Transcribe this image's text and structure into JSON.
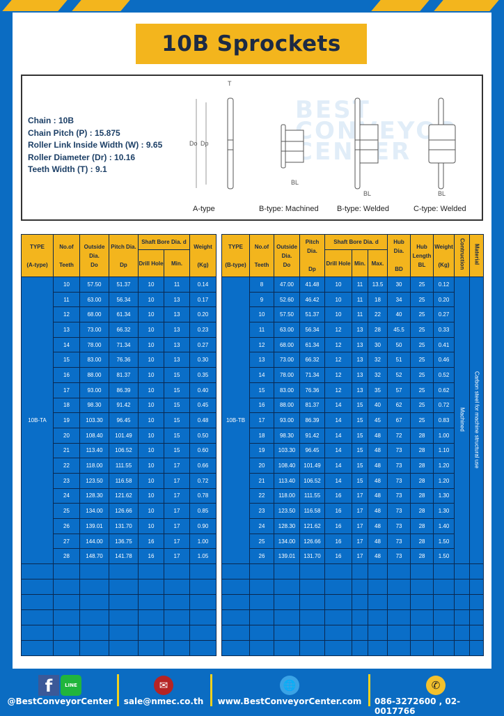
{
  "title": "10B Sprockets",
  "specs": {
    "chain": "Chain  :  10B",
    "pitch": "Chain Pitch (P)  :  15.875",
    "roller_width": "Roller Link Inside Width (W) : 9.65",
    "roller_diameter": "Roller Diameter (Dr)  : 10.16",
    "teeth_width": "Teeth Width (T)  :  9.1"
  },
  "diagram_labels": [
    "A-type",
    "B-type: Machined",
    "B-type: Welded",
    "C-type: Welded"
  ],
  "watermark": "BEST CONVEYOR CENTER",
  "table_a": {
    "headers": {
      "type": "TYPE",
      "type_sub": "(A-type)",
      "teeth": "No.of",
      "teeth_sub": "Teeth",
      "do": "Outside",
      "do_sub": "Dia.",
      "do_sub2": "Do",
      "dp": "Pitch Dia.",
      "dp_sub": "Dp",
      "bore": "Shaft Bore Dia. d",
      "drill": "Drill Hole",
      "min": "Min.",
      "weight": "Weight",
      "weight_sub": "(Kg)"
    },
    "type_value": "10B-TA",
    "rows": [
      [
        "10",
        "57.50",
        "51.37",
        "10",
        "11",
        "0.14"
      ],
      [
        "11",
        "63.00",
        "56.34",
        "10",
        "13",
        "0.17"
      ],
      [
        "12",
        "68.00",
        "61.34",
        "10",
        "13",
        "0.20"
      ],
      [
        "13",
        "73.00",
        "66.32",
        "10",
        "13",
        "0.23"
      ],
      [
        "14",
        "78.00",
        "71.34",
        "10",
        "13",
        "0.27"
      ],
      [
        "15",
        "83.00",
        "76.36",
        "10",
        "13",
        "0.30"
      ],
      [
        "16",
        "88.00",
        "81.37",
        "10",
        "15",
        "0.35"
      ],
      [
        "17",
        "93.00",
        "86.39",
        "10",
        "15",
        "0.40"
      ],
      [
        "18",
        "98.30",
        "91.42",
        "10",
        "15",
        "0.45"
      ],
      [
        "19",
        "103.30",
        "96.45",
        "10",
        "15",
        "0.48"
      ],
      [
        "20",
        "108.40",
        "101.49",
        "10",
        "15",
        "0.50"
      ],
      [
        "21",
        "113.40",
        "106.52",
        "10",
        "15",
        "0.60"
      ],
      [
        "22",
        "118.00",
        "111.55",
        "10",
        "17",
        "0.66"
      ],
      [
        "23",
        "123.50",
        "116.58",
        "10",
        "17",
        "0.72"
      ],
      [
        "24",
        "128.30",
        "121.62",
        "10",
        "17",
        "0.78"
      ],
      [
        "25",
        "134.00",
        "126.66",
        "10",
        "17",
        "0.85"
      ],
      [
        "26",
        "139.01",
        "131.70",
        "10",
        "17",
        "0.90"
      ],
      [
        "27",
        "144.00",
        "136.75",
        "16",
        "17",
        "1.00"
      ],
      [
        "28",
        "148.70",
        "141.78",
        "16",
        "17",
        "1.05"
      ]
    ]
  },
  "table_b": {
    "headers": {
      "type": "TYPE",
      "type_sub": "(B-type)",
      "teeth": "No.of",
      "teeth_sub": "Teeth",
      "do": "Outside",
      "do_sub": "Dia.",
      "do_sub2": "Do",
      "dp": "Pitch Dia.",
      "dp_sub": "Dp",
      "bore": "Shaft Bore Dia. d",
      "drill": "Drill Hole",
      "min": "Min.",
      "max": "Max.",
      "bd": "Hub Dia.",
      "bd_sub": "BD",
      "bl": "Hub",
      "bl_sub": "Length",
      "bl_sub2": "BL",
      "weight": "Weight",
      "weight_sub": "(Kg)",
      "construction": "Contruction",
      "material": "Material"
    },
    "type_value": "10B-TB",
    "construction_value": "Machined",
    "material_value": "Carbon steel  for machine structural use",
    "rows": [
      [
        "8",
        "47.00",
        "41.48",
        "10",
        "11",
        "13.5",
        "30",
        "25",
        "0.12"
      ],
      [
        "9",
        "52.60",
        "46.42",
        "10",
        "11",
        "18",
        "34",
        "25",
        "0.20"
      ],
      [
        "10",
        "57.50",
        "51.37",
        "10",
        "11",
        "22",
        "40",
        "25",
        "0.27"
      ],
      [
        "11",
        "63.00",
        "56.34",
        "12",
        "13",
        "28",
        "45.5",
        "25",
        "0.33"
      ],
      [
        "12",
        "68.00",
        "61.34",
        "12",
        "13",
        "30",
        "50",
        "25",
        "0.41"
      ],
      [
        "13",
        "73.00",
        "66.32",
        "12",
        "13",
        "32",
        "51",
        "25",
        "0.46"
      ],
      [
        "14",
        "78.00",
        "71.34",
        "12",
        "13",
        "32",
        "52",
        "25",
        "0.52"
      ],
      [
        "15",
        "83.00",
        "76.36",
        "12",
        "13",
        "35",
        "57",
        "25",
        "0.62"
      ],
      [
        "16",
        "88.00",
        "81.37",
        "14",
        "15",
        "40",
        "62",
        "25",
        "0.72"
      ],
      [
        "17",
        "93.00",
        "86.39",
        "14",
        "15",
        "45",
        "67",
        "25",
        "0.83"
      ],
      [
        "18",
        "98.30",
        "91.42",
        "14",
        "15",
        "48",
        "72",
        "28",
        "1.00"
      ],
      [
        "19",
        "103.30",
        "96.45",
        "14",
        "15",
        "48",
        "73",
        "28",
        "1.10"
      ],
      [
        "20",
        "108.40",
        "101.49",
        "14",
        "15",
        "48",
        "73",
        "28",
        "1.20"
      ],
      [
        "21",
        "113.40",
        "106.52",
        "14",
        "15",
        "48",
        "73",
        "28",
        "1.20"
      ],
      [
        "22",
        "118.00",
        "111.55",
        "16",
        "17",
        "48",
        "73",
        "28",
        "1.30"
      ],
      [
        "23",
        "123.50",
        "116.58",
        "16",
        "17",
        "48",
        "73",
        "28",
        "1.30"
      ],
      [
        "24",
        "128.30",
        "121.62",
        "16",
        "17",
        "48",
        "73",
        "28",
        "1.40"
      ],
      [
        "25",
        "134.00",
        "126.66",
        "16",
        "17",
        "48",
        "73",
        "28",
        "1.50"
      ],
      [
        "26",
        "139.01",
        "131.70",
        "16",
        "17",
        "48",
        "73",
        "28",
        "1.50"
      ]
    ]
  },
  "footer": {
    "social": "@BestConveyorCenter",
    "email": "sale@nmec.co.th",
    "website": "www.BestConveyorCenter.com",
    "phone": "086-3272600 , 02-0017766",
    "line_label": "LINE"
  },
  "colors": {
    "frame_blue": "#0b6cc2",
    "accent_yellow": "#f3b51d",
    "cell_blue": "#0a6ec8",
    "title_text": "#1c2a44"
  }
}
